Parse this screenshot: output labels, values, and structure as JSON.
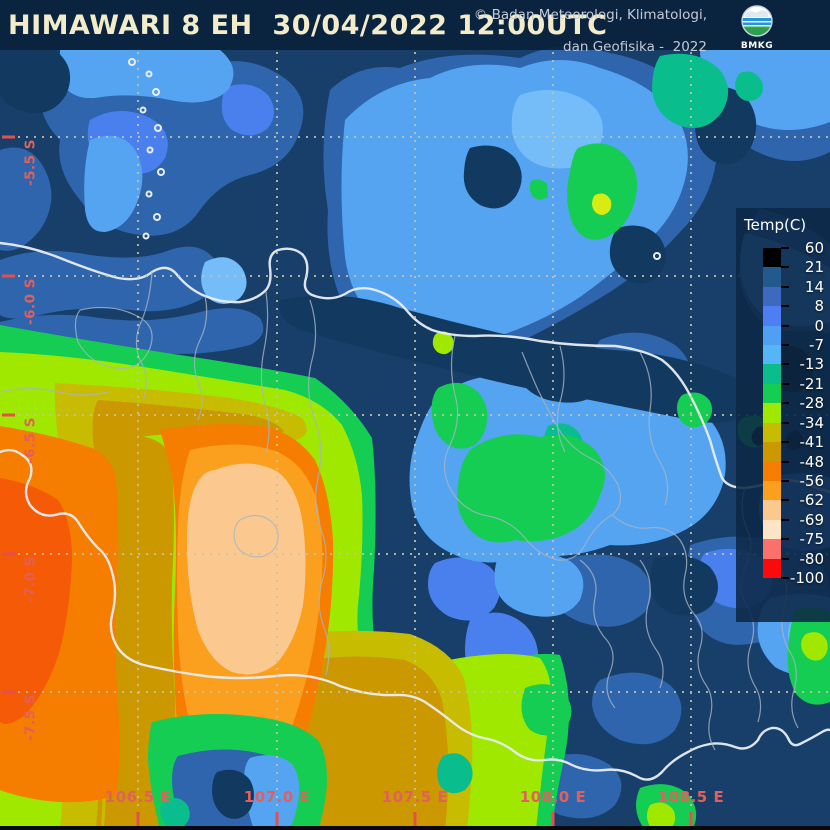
{
  "header": {
    "title": "HIMAWARI 8 EH  30/04/2022 12:00UTC",
    "copyright_line1": "© Badan Meteorologi, Klimatologi,",
    "copyright_line2": "dan Geofisika -  2022",
    "logo_caption": "BMKG"
  },
  "legend": {
    "title": "Temp(C)",
    "values": [
      60,
      21,
      14,
      8,
      0,
      -7,
      -13,
      -21,
      -28,
      -34,
      -41,
      -48,
      -56,
      -62,
      -69,
      -75,
      -80,
      -100
    ],
    "segment_colors": [
      "#000000",
      "#235a8e",
      "#3e69c0",
      "#4d7ef2",
      "#4fa0f2",
      "#56b5f7",
      "#0abd8d",
      "#15cd52",
      "#a0e800",
      "#c8bc00",
      "#cc9800",
      "#f57d00",
      "#faa01e",
      "#fbc990",
      "#fde4c6",
      "#f9716a",
      "#fa0a0a"
    ]
  },
  "axes": {
    "longitude_labels": [
      "106.5 E",
      "107.0 E",
      "107.5 E",
      "108.0 E",
      "108.5 E"
    ],
    "latitude_labels": [
      "-5.5 S",
      "-6.0 S",
      "-6.5 S",
      "-7.0 S",
      "-7.5 S"
    ],
    "label_color": "#e2605c"
  },
  "map": {
    "gridline_color": "#c9c3a6",
    "coastline_color": "#e9edf2",
    "border_color": "#a7b4c4",
    "palette": {
      "sea_navy": "#173f6a",
      "navy_dark": "#123a60",
      "medium_blue": "#2f65ad",
      "blue": "#4a80ee",
      "light_blue": "#55a4f2",
      "pale_blue": "#74bdf8",
      "teal": "#0abd8d",
      "green": "#15cd52",
      "chartreuse": "#a0e800",
      "yellow_olive": "#c8bc00",
      "goldenrod": "#cc9800",
      "orange": "#f57d00",
      "deep_orange": "#f55a06",
      "light_orange": "#faa01e",
      "peach": "#fbc990",
      "cream": "#fde4c6"
    }
  }
}
